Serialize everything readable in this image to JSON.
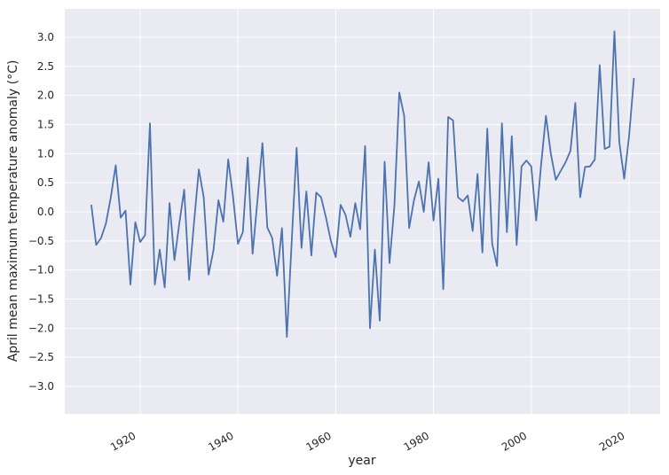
{
  "chart_data": {
    "type": "line",
    "title": "",
    "xlabel": "year",
    "ylabel": "April mean maximum temperature anomaly (°C)",
    "xlim": [
      1905.3,
      2023.5
    ],
    "ylim": [
      -3.5,
      3.5
    ],
    "xticks": [
      1920,
      1940,
      1960,
      1980,
      2000,
      2020
    ],
    "xtick_labels": [
      "1920",
      "1940",
      "1960",
      "1980",
      "2000",
      "2020"
    ],
    "yticks": [
      3.0,
      2.5,
      2.0,
      1.5,
      1.0,
      0.5,
      0.0,
      -0.5,
      -1.0,
      -1.5,
      -2.0,
      -2.5,
      -3.0
    ],
    "ytick_labels": [
      "3.0",
      "2.5",
      "2.0",
      "1.5",
      "1.0",
      "0.5",
      "0.0",
      "−0.5",
      "−1.0",
      "−1.5",
      "−2.0",
      "−2.5",
      "−3.0"
    ],
    "grid": true,
    "line_color": "#4c72b0",
    "background_color": "#eaeaf2",
    "series": [
      {
        "name": "April mean maximum temperature anomaly",
        "x": [
          1910,
          1911,
          1912,
          1913,
          1914,
          1915,
          1916,
          1917,
          1918,
          1919,
          1920,
          1921,
          1922,
          1923,
          1924,
          1925,
          1926,
          1927,
          1928,
          1929,
          1930,
          1931,
          1932,
          1933,
          1934,
          1935,
          1936,
          1937,
          1938,
          1939,
          1940,
          1941,
          1942,
          1943,
          1944,
          1945,
          1946,
          1947,
          1948,
          1949,
          1950,
          1951,
          1952,
          1953,
          1954,
          1955,
          1956,
          1957,
          1958,
          1959,
          1960,
          1961,
          1962,
          1963,
          1964,
          1965,
          1966,
          1967,
          1968,
          1969,
          1970,
          1971,
          1972,
          1973,
          1974,
          1975,
          1976,
          1977,
          1978,
          1979,
          1980,
          1981,
          1982,
          1983,
          1984,
          1985,
          1986,
          1987,
          1988,
          1989,
          1990,
          1991,
          1992,
          1993,
          1994,
          1995,
          1996,
          1997,
          1998,
          1999,
          2000,
          2001,
          2002,
          2003,
          2004,
          2005,
          2006,
          2007,
          2008,
          2009,
          2010,
          2011,
          2012,
          2013,
          2014,
          2015,
          2016,
          2017,
          2018,
          2019,
          2020,
          2021
        ],
        "values": [
          0.12,
          -0.57,
          -0.45,
          -0.2,
          0.25,
          0.8,
          -0.1,
          0.02,
          -1.25,
          -0.18,
          -0.52,
          -0.4,
          1.52,
          -1.25,
          -0.65,
          -1.3,
          0.15,
          -0.83,
          -0.2,
          0.38,
          -1.17,
          -0.2,
          0.73,
          0.25,
          -1.08,
          -0.65,
          0.2,
          -0.17,
          0.9,
          0.25,
          -0.55,
          -0.35,
          0.93,
          -0.72,
          0.2,
          1.18,
          -0.27,
          -0.45,
          -1.1,
          -0.28,
          -2.15,
          -0.5,
          1.1,
          -0.62,
          0.35,
          -0.75,
          0.33,
          0.25,
          -0.1,
          -0.5,
          -0.78,
          0.12,
          -0.05,
          -0.43,
          0.15,
          -0.3,
          1.13,
          -2.0,
          -0.65,
          -1.87,
          0.86,
          -0.88,
          0.1,
          2.05,
          1.65,
          -0.28,
          0.2,
          0.52,
          0.0,
          0.85,
          -0.15,
          0.57,
          -1.33,
          1.63,
          1.57,
          0.25,
          0.18,
          0.28,
          -0.33,
          0.65,
          -0.7,
          1.43,
          -0.55,
          -0.93,
          1.52,
          -0.35,
          1.3,
          -0.57,
          0.78,
          0.88,
          0.78,
          -0.15,
          0.8,
          1.65,
          1.0,
          0.55,
          0.7,
          0.85,
          1.05,
          1.87,
          0.25,
          0.77,
          0.78,
          0.9,
          2.52,
          1.08,
          1.12,
          3.1,
          1.2,
          0.57,
          1.3,
          2.3
        ]
      }
    ]
  }
}
